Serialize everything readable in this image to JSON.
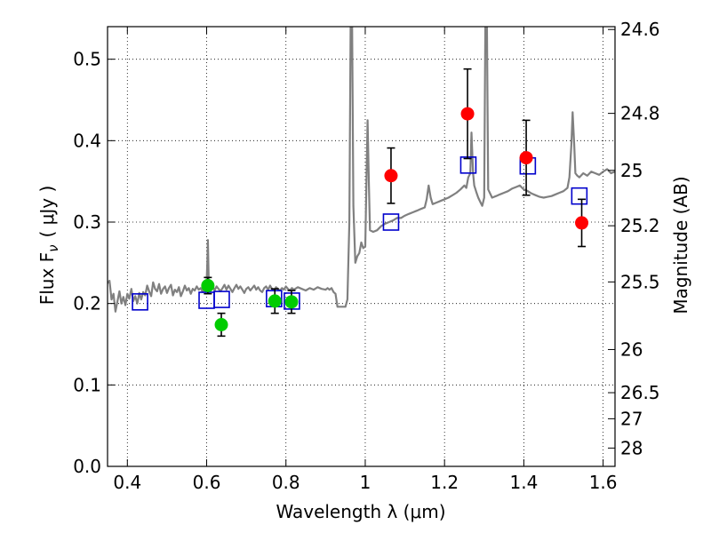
{
  "chart_data": {
    "type": "scatter",
    "xlabel": "Wavelength  λ (μm)",
    "ylabel": "Flux  F",
    "ylabel_subscript": "ν",
    "ylabel_unit": "( μJy )",
    "ylabel_right": "Magnitude (AB)",
    "xlim": [
      0.35,
      1.63
    ],
    "ylim": [
      0.0,
      0.54
    ],
    "grid": true,
    "x_ticks": [
      {
        "value": 0.4,
        "label": "0.4"
      },
      {
        "value": 0.6,
        "label": "0.6"
      },
      {
        "value": 0.8,
        "label": "0.8"
      },
      {
        "value": 1.0,
        "label": "1"
      },
      {
        "value": 1.2,
        "label": "1.2"
      },
      {
        "value": 1.4,
        "label": "1.4"
      },
      {
        "value": 1.6,
        "label": "1.6"
      }
    ],
    "y_ticks": [
      {
        "value": 0.0,
        "label": "0.0"
      },
      {
        "value": 0.1,
        "label": "0.1"
      },
      {
        "value": 0.2,
        "label": "0.2"
      },
      {
        "value": 0.3,
        "label": "0.3"
      },
      {
        "value": 0.4,
        "label": "0.4"
      },
      {
        "value": 0.5,
        "label": "0.5"
      }
    ],
    "y_ticks_right": [
      {
        "flux": 0.5365,
        "label": "24.6"
      },
      {
        "flux": 0.4335,
        "label": "24.8"
      },
      {
        "flux": 0.3635,
        "label": "25"
      },
      {
        "flux": 0.2955,
        "label": "25.2"
      },
      {
        "flux": 0.2265,
        "label": "25.5"
      },
      {
        "flux": 0.1435,
        "label": "26"
      },
      {
        "flux": 0.0905,
        "label": "26.5"
      },
      {
        "flux": 0.0585,
        "label": "27"
      },
      {
        "flux": 0.0225,
        "label": "28"
      }
    ],
    "series": [
      {
        "type": "line",
        "color": "#808080",
        "points": [
          [
            0.35,
            0.225
          ],
          [
            0.355,
            0.228
          ],
          [
            0.36,
            0.205
          ],
          [
            0.365,
            0.212
          ],
          [
            0.37,
            0.19
          ],
          [
            0.375,
            0.203
          ],
          [
            0.38,
            0.215
          ],
          [
            0.385,
            0.2
          ],
          [
            0.39,
            0.208
          ],
          [
            0.395,
            0.198
          ],
          [
            0.4,
            0.212
          ],
          [
            0.405,
            0.206
          ],
          [
            0.41,
            0.218
          ],
          [
            0.415,
            0.203
          ],
          [
            0.42,
            0.209
          ],
          [
            0.425,
            0.2
          ],
          [
            0.43,
            0.213
          ],
          [
            0.435,
            0.205
          ],
          [
            0.44,
            0.214
          ],
          [
            0.445,
            0.21
          ],
          [
            0.45,
            0.222
          ],
          [
            0.455,
            0.215
          ],
          [
            0.46,
            0.209
          ],
          [
            0.465,
            0.226
          ],
          [
            0.47,
            0.218
          ],
          [
            0.475,
            0.215
          ],
          [
            0.48,
            0.224
          ],
          [
            0.485,
            0.212
          ],
          [
            0.49,
            0.218
          ],
          [
            0.495,
            0.221
          ],
          [
            0.5,
            0.213
          ],
          [
            0.505,
            0.219
          ],
          [
            0.51,
            0.223
          ],
          [
            0.515,
            0.21
          ],
          [
            0.52,
            0.217
          ],
          [
            0.525,
            0.214
          ],
          [
            0.53,
            0.22
          ],
          [
            0.535,
            0.209
          ],
          [
            0.54,
            0.215
          ],
          [
            0.545,
            0.222
          ],
          [
            0.55,
            0.216
          ],
          [
            0.555,
            0.219
          ],
          [
            0.56,
            0.212
          ],
          [
            0.565,
            0.218
          ],
          [
            0.57,
            0.216
          ],
          [
            0.575,
            0.221
          ],
          [
            0.58,
            0.217
          ],
          [
            0.585,
            0.219
          ],
          [
            0.59,
            0.214
          ],
          [
            0.595,
            0.22
          ],
          [
            0.6,
            0.226
          ],
          [
            0.602,
            0.255
          ],
          [
            0.603,
            0.278
          ],
          [
            0.605,
            0.23
          ],
          [
            0.61,
            0.219
          ],
          [
            0.615,
            0.222
          ],
          [
            0.62,
            0.216
          ],
          [
            0.625,
            0.221
          ],
          [
            0.63,
            0.218
          ],
          [
            0.635,
            0.215
          ],
          [
            0.64,
            0.219
          ],
          [
            0.645,
            0.223
          ],
          [
            0.65,
            0.217
          ],
          [
            0.655,
            0.222
          ],
          [
            0.66,
            0.218
          ],
          [
            0.665,
            0.214
          ],
          [
            0.67,
            0.219
          ],
          [
            0.675,
            0.223
          ],
          [
            0.68,
            0.218
          ],
          [
            0.685,
            0.221
          ],
          [
            0.69,
            0.217
          ],
          [
            0.695,
            0.213
          ],
          [
            0.7,
            0.218
          ],
          [
            0.705,
            0.22
          ],
          [
            0.71,
            0.216
          ],
          [
            0.715,
            0.219
          ],
          [
            0.72,
            0.222
          ],
          [
            0.725,
            0.217
          ],
          [
            0.73,
            0.22
          ],
          [
            0.735,
            0.216
          ],
          [
            0.74,
            0.214
          ],
          [
            0.745,
            0.219
          ],
          [
            0.75,
            0.221
          ],
          [
            0.755,
            0.217
          ],
          [
            0.76,
            0.222
          ],
          [
            0.765,
            0.218
          ],
          [
            0.77,
            0.216
          ],
          [
            0.775,
            0.22
          ],
          [
            0.78,
            0.218
          ],
          [
            0.785,
            0.216
          ],
          [
            0.79,
            0.219
          ],
          [
            0.795,
            0.217
          ],
          [
            0.8,
            0.221
          ],
          [
            0.805,
            0.218
          ],
          [
            0.81,
            0.216
          ],
          [
            0.815,
            0.219
          ],
          [
            0.82,
            0.217
          ],
          [
            0.83,
            0.22
          ],
          [
            0.84,
            0.218
          ],
          [
            0.85,
            0.216
          ],
          [
            0.86,
            0.219
          ],
          [
            0.87,
            0.217
          ],
          [
            0.88,
            0.22
          ],
          [
            0.89,
            0.218
          ],
          [
            0.9,
            0.217
          ],
          [
            0.905,
            0.219
          ],
          [
            0.91,
            0.217
          ],
          [
            0.915,
            0.219
          ],
          [
            0.92,
            0.214
          ],
          [
            0.925,
            0.212
          ],
          [
            0.93,
            0.196
          ],
          [
            0.94,
            0.196
          ],
          [
            0.95,
            0.196
          ],
          [
            0.955,
            0.205
          ],
          [
            0.96,
            0.3
          ],
          [
            0.963,
            0.54
          ],
          [
            0.967,
            0.54
          ],
          [
            0.97,
            0.32
          ],
          [
            0.975,
            0.25
          ],
          [
            0.98,
            0.258
          ],
          [
            0.985,
            0.262
          ],
          [
            0.99,
            0.275
          ],
          [
            0.995,
            0.268
          ],
          [
            1.0,
            0.27
          ],
          [
            1.003,
            0.35
          ],
          [
            1.006,
            0.425
          ],
          [
            1.009,
            0.35
          ],
          [
            1.012,
            0.29
          ],
          [
            1.02,
            0.288
          ],
          [
            1.03,
            0.29
          ],
          [
            1.04,
            0.295
          ],
          [
            1.05,
            0.298
          ],
          [
            1.06,
            0.3
          ],
          [
            1.07,
            0.302
          ],
          [
            1.08,
            0.305
          ],
          [
            1.09,
            0.305
          ],
          [
            1.1,
            0.308
          ],
          [
            1.11,
            0.31
          ],
          [
            1.12,
            0.312
          ],
          [
            1.13,
            0.314
          ],
          [
            1.14,
            0.316
          ],
          [
            1.15,
            0.318
          ],
          [
            1.155,
            0.328
          ],
          [
            1.16,
            0.345
          ],
          [
            1.165,
            0.33
          ],
          [
            1.17,
            0.322
          ],
          [
            1.18,
            0.324
          ],
          [
            1.19,
            0.326
          ],
          [
            1.2,
            0.328
          ],
          [
            1.21,
            0.33
          ],
          [
            1.22,
            0.333
          ],
          [
            1.23,
            0.336
          ],
          [
            1.24,
            0.34
          ],
          [
            1.25,
            0.345
          ],
          [
            1.255,
            0.342
          ],
          [
            1.26,
            0.355
          ],
          [
            1.265,
            0.36
          ],
          [
            1.268,
            0.41
          ],
          [
            1.272,
            0.36
          ],
          [
            1.275,
            0.345
          ],
          [
            1.28,
            0.337
          ],
          [
            1.285,
            0.33
          ],
          [
            1.29,
            0.325
          ],
          [
            1.295,
            0.32
          ],
          [
            1.3,
            0.33
          ],
          [
            1.303,
            0.54
          ],
          [
            1.307,
            0.54
          ],
          [
            1.31,
            0.34
          ],
          [
            1.315,
            0.335
          ],
          [
            1.32,
            0.33
          ],
          [
            1.33,
            0.332
          ],
          [
            1.34,
            0.334
          ],
          [
            1.35,
            0.336
          ],
          [
            1.36,
            0.338
          ],
          [
            1.37,
            0.341
          ],
          [
            1.38,
            0.343
          ],
          [
            1.39,
            0.345
          ],
          [
            1.4,
            0.34
          ],
          [
            1.41,
            0.338
          ],
          [
            1.42,
            0.335
          ],
          [
            1.43,
            0.333
          ],
          [
            1.44,
            0.331
          ],
          [
            1.45,
            0.33
          ],
          [
            1.46,
            0.331
          ],
          [
            1.47,
            0.332
          ],
          [
            1.48,
            0.334
          ],
          [
            1.49,
            0.336
          ],
          [
            1.5,
            0.338
          ],
          [
            1.51,
            0.342
          ],
          [
            1.515,
            0.355
          ],
          [
            1.52,
            0.395
          ],
          [
            1.523,
            0.435
          ],
          [
            1.527,
            0.395
          ],
          [
            1.53,
            0.36
          ],
          [
            1.535,
            0.357
          ],
          [
            1.54,
            0.355
          ],
          [
            1.55,
            0.36
          ],
          [
            1.56,
            0.357
          ],
          [
            1.57,
            0.362
          ],
          [
            1.58,
            0.36
          ],
          [
            1.59,
            0.358
          ],
          [
            1.6,
            0.362
          ],
          [
            1.61,
            0.365
          ],
          [
            1.62,
            0.36
          ],
          [
            1.63,
            0.362
          ]
        ]
      },
      {
        "type": "markers",
        "marker": "square",
        "color": "#0000cc",
        "points": [
          [
            0.432,
            0.202
          ],
          [
            0.6,
            0.204
          ],
          [
            0.638,
            0.205
          ],
          [
            0.77,
            0.206
          ],
          [
            0.815,
            0.203
          ],
          [
            1.065,
            0.3
          ],
          [
            1.26,
            0.37
          ],
          [
            1.41,
            0.369
          ],
          [
            1.54,
            0.332
          ]
        ]
      },
      {
        "type": "markers",
        "marker": "circle",
        "color": "#00cc00",
        "points": [
          {
            "x": 0.603,
            "y": 0.222,
            "err": 0.01
          },
          {
            "x": 0.637,
            "y": 0.174,
            "err": 0.014
          },
          {
            "x": 0.772,
            "y": 0.203,
            "err": 0.015
          },
          {
            "x": 0.814,
            "y": 0.202,
            "err": 0.014
          }
        ]
      },
      {
        "type": "markers",
        "marker": "circle",
        "color": "#ff0000",
        "points": [
          {
            "x": 1.065,
            "y": 0.357,
            "err": 0.034
          },
          {
            "x": 1.258,
            "y": 0.433,
            "err": 0.055
          },
          {
            "x": 1.406,
            "y": 0.379,
            "err": 0.046
          },
          {
            "x": 1.546,
            "y": 0.299,
            "err": 0.029
          }
        ]
      }
    ]
  }
}
